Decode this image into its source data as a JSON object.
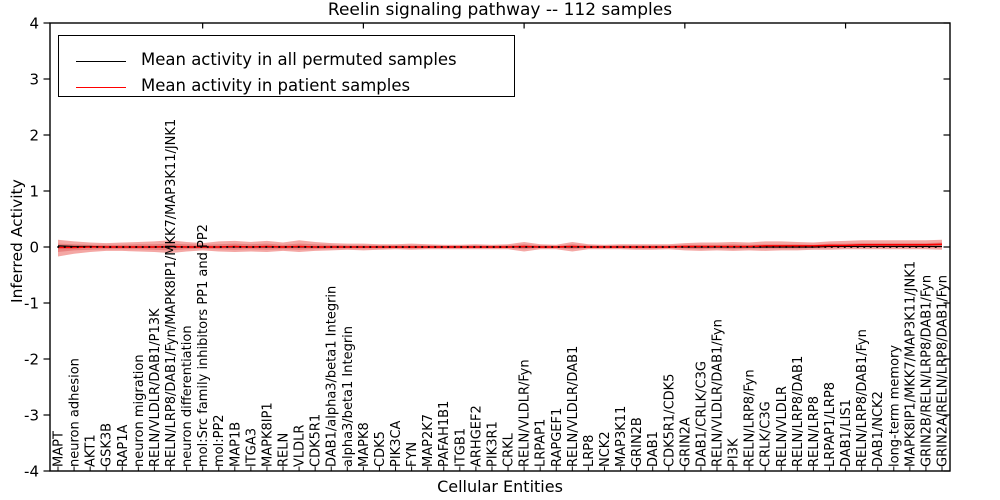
{
  "title": "Reelin signaling pathway -- 112 samples",
  "axes": {
    "ylabel": "Inferred Activity",
    "xlabel": "Cellular Entities",
    "yticks": [
      4,
      3,
      2,
      1,
      0,
      -1,
      -2,
      -3,
      -4
    ],
    "ylim": [
      -4,
      4
    ]
  },
  "legend": [
    {
      "label": "Mean activity in all permuted samples",
      "color": "#000000"
    },
    {
      "label": "Mean activity in patient samples",
      "color": "#ff0000"
    }
  ],
  "colors": {
    "band_outer": "#f4a7a4",
    "band_inner": "#e98280",
    "permuted_line": "#000000",
    "patient_line": "#ff0000",
    "zero_dotted_line": "#000000",
    "frame": "#000000"
  },
  "chart_data": {
    "type": "line",
    "title": "Reelin signaling pathway -- 112 samples",
    "xlabel": "Cellular Entities",
    "ylabel": "Inferred Activity",
    "ylim": [
      -4,
      4
    ],
    "grid": false,
    "legend_position": "upper left",
    "categories": [
      "MAPT",
      "neuron adhesion",
      "AKT1",
      "GSK3B",
      "RAP1A",
      "neuron migration",
      "RELN/VLDLR/DAB1/P13K",
      "RELN/LRP8/DAB1/Fyn/MAPK8IP1/MKK7/MAP3K11/JNK1",
      "neuron differentiation",
      "mol:Src family inhibitors PP1 and PP2",
      "mol:PP2",
      "MAP1B",
      "ITGA3",
      "MAPK8IP1",
      "RELN",
      "VLDLR",
      "CDK5R1",
      "DAB1/alpha3/beta1 Integrin",
      "alpha3/beta1 Integrin",
      "MAPK8",
      "CDK5",
      "PIK3CA",
      "FYN",
      "MAP2K7",
      "PAFAH1B1",
      "ITGB1",
      "ARHGEF2",
      "PIK3R1",
      "CRKL",
      "RELN/VLDLR/Fyn",
      "LRPAP1",
      "RAPGEF1",
      "RELN/VLDLR/DAB1",
      "LRP8",
      "NCK2",
      "MAP3K11",
      "GRIN2B",
      "DAB1",
      "CDK5R1/CDK5",
      "GRIN2A",
      "DAB1/CRLK/C3G",
      "RELN/VLDLR/DAB1/Fyn",
      "PI3K",
      "RELN/LRP8/Fyn",
      "CRLK/C3G",
      "RELN/VLDLR",
      "RELN/LRP8/DAB1",
      "RELN/LRP8",
      "LRPAP1/LRP8",
      "DAB1/LIS1",
      "RELN/LRP8/DAB1/Fyn",
      "DAB1/NCK2",
      "long-term memory",
      "MAPK8IP1/MKK7/MAP3K11/JNK1",
      "GRIN2B/RELN/LRP8/DAB1/Fyn",
      "GRIN2A/RELN/LRP8/DAB1/Fyn"
    ],
    "series": [
      {
        "name": "Mean activity in all permuted samples",
        "color": "#000000",
        "values": [
          0.02,
          0.01,
          0.01,
          0,
          0,
          0,
          0,
          0,
          0,
          0,
          0,
          0,
          0,
          0,
          0,
          0,
          0,
          0,
          0,
          0,
          0,
          0,
          0,
          0,
          0,
          0,
          0,
          0,
          0,
          0,
          0,
          0,
          0,
          0,
          0,
          0,
          0,
          0,
          0,
          0,
          0,
          0,
          0,
          0,
          0,
          0,
          0,
          0,
          0.01,
          0.01,
          0.01,
          0.01,
          0.01,
          0.01,
          0.01,
          0.01
        ]
      },
      {
        "name": "Mean activity in patient samples",
        "color": "#ff0000",
        "values": [
          -0.01,
          -0.01,
          0,
          0,
          0,
          0,
          0,
          0.01,
          0,
          0,
          0,
          0.01,
          0,
          0.01,
          0,
          0.01,
          0,
          0,
          0,
          0,
          0,
          0,
          0,
          0,
          0,
          0,
          0,
          0,
          0,
          0.01,
          0,
          0,
          0.01,
          0,
          0,
          0,
          0,
          0,
          0,
          0.01,
          0.01,
          0.01,
          0.01,
          0.01,
          0.02,
          0.02,
          0.02,
          0.02,
          0.03,
          0.03,
          0.04,
          0.04,
          0.04,
          0.04,
          0.04,
          0.05
        ]
      }
    ],
    "bands": [
      {
        "name": "patient std (outer)",
        "upper": [
          0.13,
          0.1,
          0.08,
          0.07,
          0.08,
          0.09,
          0.1,
          0.12,
          0.09,
          0.07,
          0.1,
          0.11,
          0.09,
          0.11,
          0.08,
          0.12,
          0.09,
          0.07,
          0.06,
          0.06,
          0.05,
          0.05,
          0.06,
          0.05,
          0.04,
          0.04,
          0.05,
          0.04,
          0.05,
          0.09,
          0.05,
          0.04,
          0.09,
          0.05,
          0.04,
          0.05,
          0.05,
          0.05,
          0.05,
          0.07,
          0.08,
          0.08,
          0.09,
          0.08,
          0.1,
          0.1,
          0.09,
          0.08,
          0.1,
          0.11,
          0.12,
          0.12,
          0.12,
          0.12,
          0.12,
          0.13
        ],
        "lower": [
          -0.17,
          -0.12,
          -0.09,
          -0.07,
          -0.07,
          -0.08,
          -0.09,
          -0.11,
          -0.08,
          -0.06,
          -0.08,
          -0.09,
          -0.08,
          -0.09,
          -0.07,
          -0.09,
          -0.07,
          -0.06,
          -0.05,
          -0.06,
          -0.05,
          -0.04,
          -0.05,
          -0.04,
          -0.04,
          -0.04,
          -0.04,
          -0.04,
          -0.04,
          -0.08,
          -0.04,
          -0.04,
          -0.08,
          -0.04,
          -0.04,
          -0.04,
          -0.05,
          -0.05,
          -0.04,
          -0.06,
          -0.07,
          -0.06,
          -0.07,
          -0.06,
          -0.07,
          -0.06,
          -0.06,
          -0.05,
          -0.05,
          -0.04,
          -0.04,
          -0.04,
          -0.04,
          -0.04,
          -0.04,
          -0.05
        ]
      },
      {
        "name": "patient std (inner)",
        "upper": [
          0.06,
          0.05,
          0.04,
          0.04,
          0.04,
          0.05,
          0.05,
          0.06,
          0.05,
          0.04,
          0.05,
          0.06,
          0.05,
          0.06,
          0.04,
          0.06,
          0.05,
          0.04,
          0.03,
          0.03,
          0.03,
          0.03,
          0.03,
          0.03,
          0.02,
          0.02,
          0.03,
          0.02,
          0.03,
          0.05,
          0.03,
          0.02,
          0.05,
          0.03,
          0.02,
          0.03,
          0.03,
          0.03,
          0.03,
          0.04,
          0.04,
          0.04,
          0.05,
          0.04,
          0.05,
          0.05,
          0.05,
          0.04,
          0.06,
          0.06,
          0.07,
          0.07,
          0.07,
          0.07,
          0.07,
          0.08
        ],
        "lower": [
          -0.09,
          -0.06,
          -0.05,
          -0.04,
          -0.04,
          -0.04,
          -0.05,
          -0.06,
          -0.04,
          -0.03,
          -0.04,
          -0.05,
          -0.04,
          -0.05,
          -0.04,
          -0.05,
          -0.04,
          -0.03,
          -0.03,
          -0.03,
          -0.03,
          -0.02,
          -0.03,
          -0.02,
          -0.02,
          -0.02,
          -0.02,
          -0.02,
          -0.02,
          -0.04,
          -0.02,
          -0.02,
          -0.04,
          -0.02,
          -0.02,
          -0.02,
          -0.03,
          -0.03,
          -0.02,
          -0.03,
          -0.04,
          -0.03,
          -0.04,
          -0.03,
          -0.03,
          -0.03,
          -0.03,
          -0.02,
          -0.02,
          -0.01,
          -0.01,
          -0.01,
          -0.01,
          -0.01,
          -0.01,
          -0.02
        ]
      }
    ],
    "zero_line": {
      "style": "dotted",
      "color": "#000000",
      "y": 0
    }
  }
}
